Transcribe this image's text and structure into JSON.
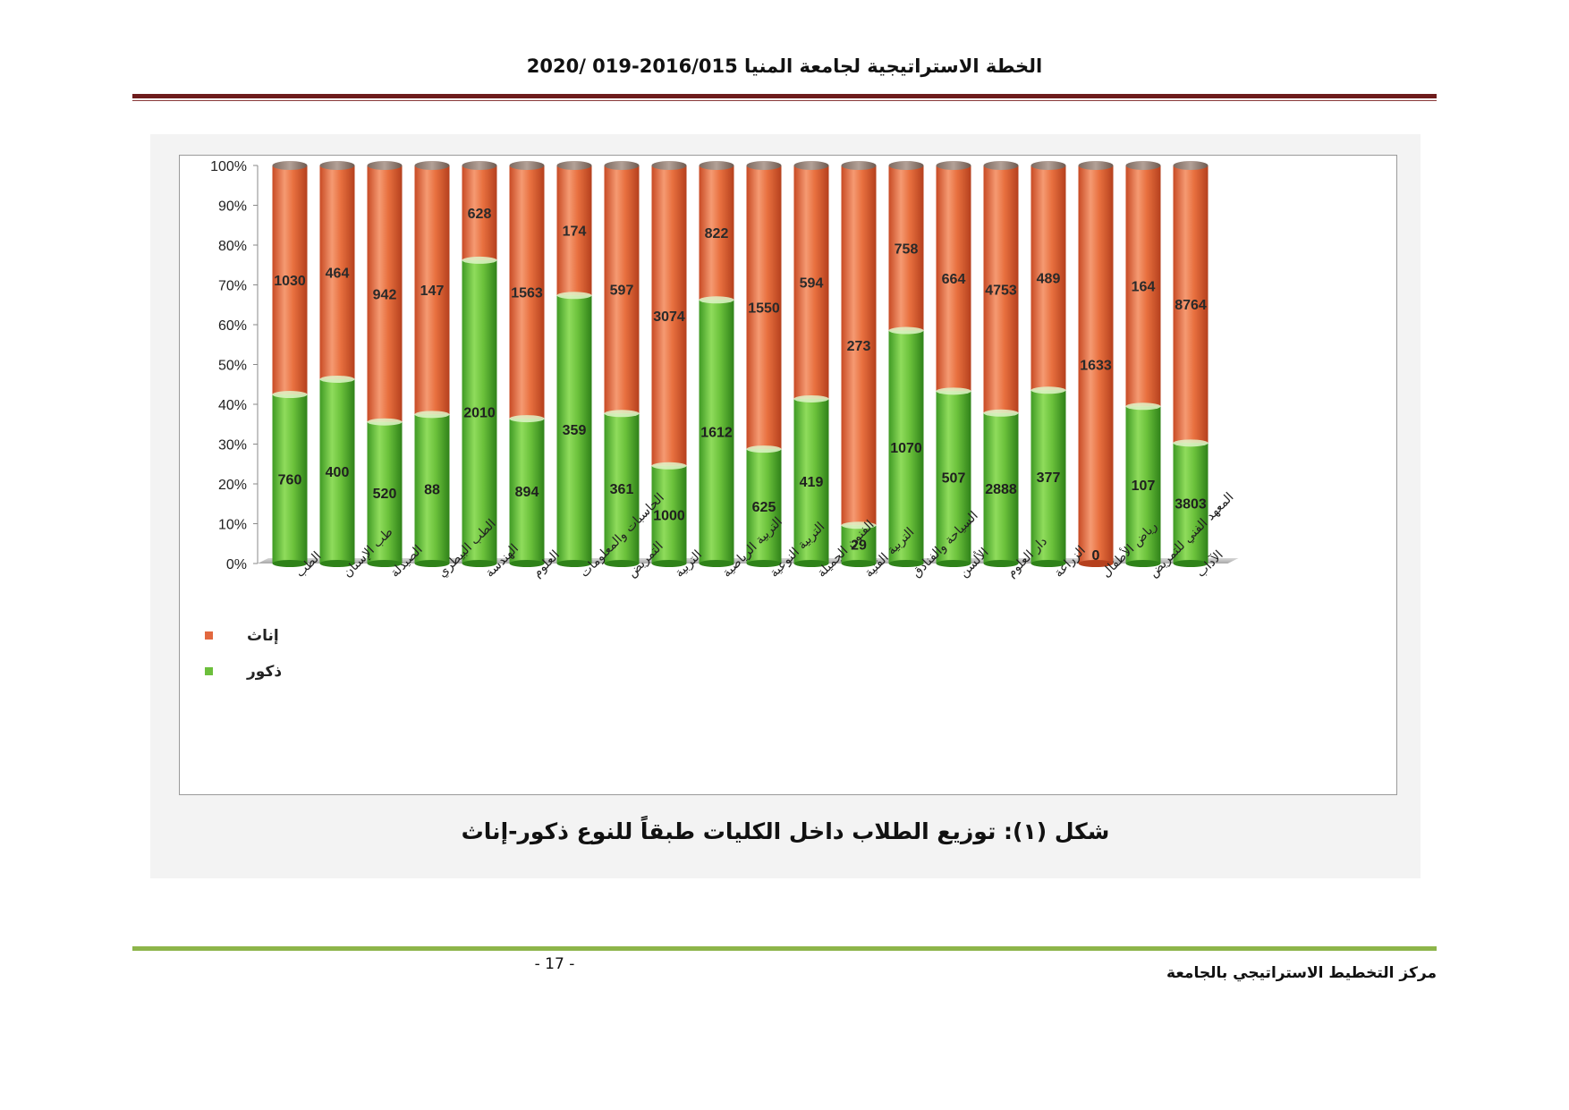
{
  "header": {
    "title": "الخطة الاستراتيجية لجامعة المنيا 2016/015-019 /2020"
  },
  "caption": "شكل (١): توزيع الطلاب داخل الكليات طبقاً للنوع ذكور-إناث",
  "footer": {
    "page_number": "- 17 -",
    "center_name": "مركز التخطيط الاستراتيجي بالجامعة"
  },
  "chart_data": {
    "type": "bar",
    "stacked": "percent",
    "categories": [
      "الطب",
      "طب الإسنان",
      "الصيدلة",
      "الطب البيطري",
      "الهندسة",
      "العلوم",
      "الحاسبات والمعلومات",
      "التمريض",
      "التربية",
      "التربية الرياضية",
      "التربية النوعية",
      "الفنون الجميلة",
      "التربية الفنية",
      "السياحة والفنادق",
      "الألسن",
      "دار العلوم",
      "الزراعة",
      "رياض الأطفال",
      "المعهد الفني للتمريض",
      "الآداب"
    ],
    "series": [
      {
        "name": "ذكور",
        "color": "#6cbf3c",
        "values": [
          760,
          400,
          520,
          88,
          2010,
          894,
          359,
          361,
          1000,
          1612,
          625,
          419,
          29,
          1070,
          507,
          2888,
          377,
          0,
          107,
          3803
        ]
      },
      {
        "name": "إناث",
        "color": "#e2683f",
        "values": [
          1030,
          464,
          942,
          147,
          628,
          1563,
          174,
          597,
          3074,
          822,
          1550,
          594,
          273,
          758,
          664,
          4753,
          489,
          1633,
          164,
          8764
        ]
      }
    ],
    "y_ticks": [
      "0%",
      "10%",
      "20%",
      "30%",
      "40%",
      "50%",
      "60%",
      "70%",
      "80%",
      "90%",
      "100%"
    ],
    "ylim": [
      0,
      100
    ],
    "legend_placement": "bottom-left",
    "grid": false
  }
}
